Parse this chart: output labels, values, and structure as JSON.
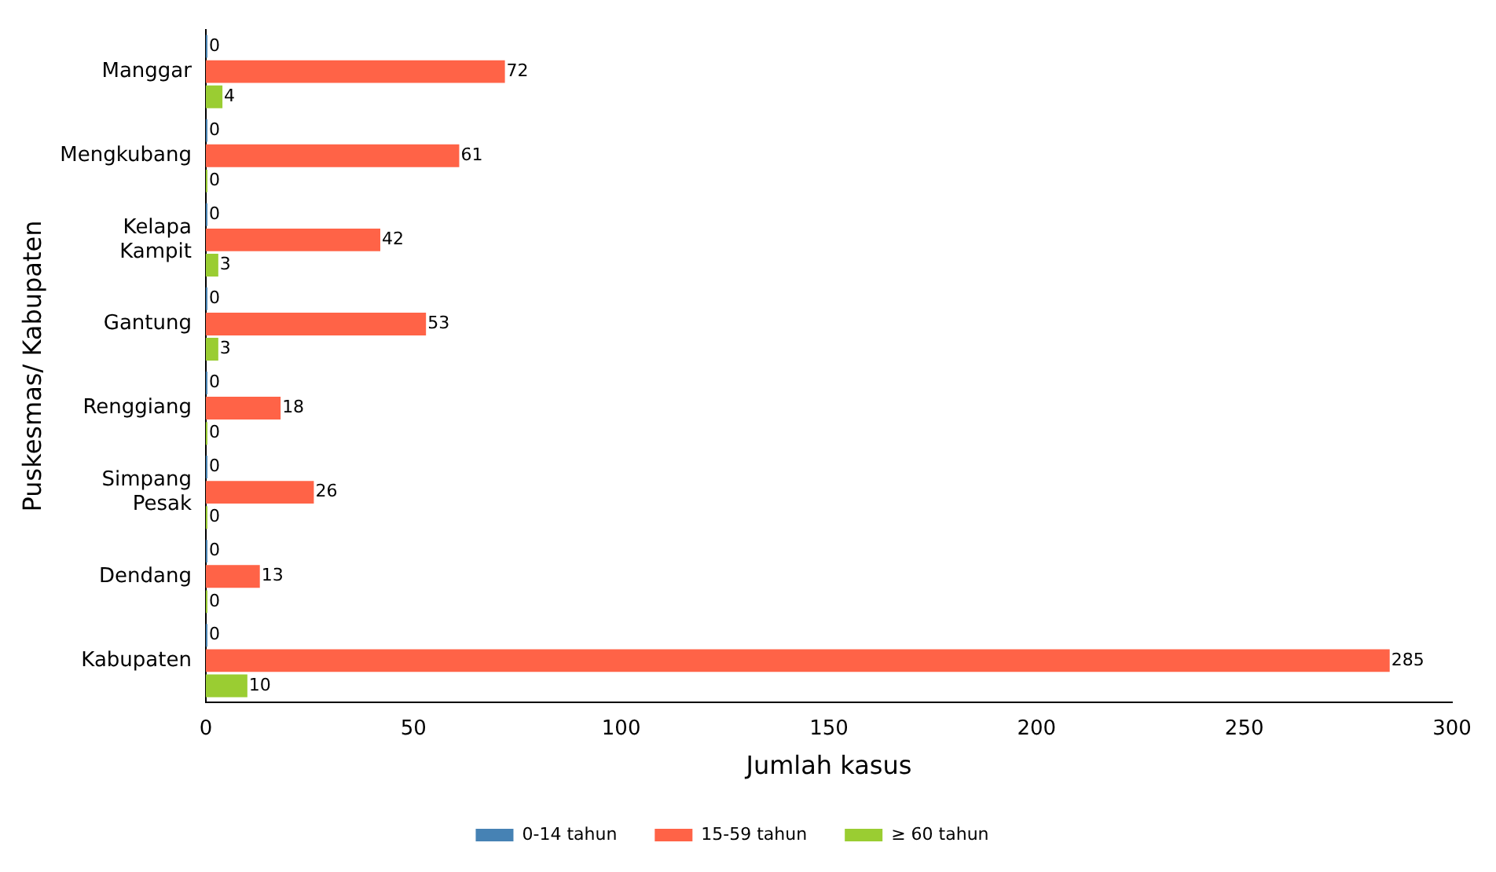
{
  "chart_data": {
    "type": "bar",
    "orientation": "horizontal",
    "xlabel": "Jumlah kasus",
    "ylabel": "Puskesmas/ Kabupaten",
    "categories": [
      "Manggar",
      "Mengkubang",
      "Kelapa Kampit",
      "Gantung",
      "Renggiang",
      "Simpang Pesak",
      "Dendang",
      "Kabupaten"
    ],
    "series": [
      {
        "name": "0-14 tahun",
        "color": "#4682b4",
        "values": [
          0,
          0,
          0,
          0,
          0,
          0,
          0,
          0
        ]
      },
      {
        "name": "15-59 tahun",
        "color": "#ff6347",
        "values": [
          72,
          61,
          42,
          53,
          18,
          26,
          13,
          285
        ]
      },
      {
        "name": "≥ 60 tahun",
        "color": "#9acd32",
        "values": [
          4,
          0,
          3,
          3,
          0,
          0,
          0,
          10
        ]
      }
    ],
    "xlim": [
      0,
      300
    ],
    "xticks": [
      0,
      50,
      100,
      150,
      200,
      250,
      300
    ],
    "grid": false,
    "legend": "bottom",
    "data_labels": true
  }
}
